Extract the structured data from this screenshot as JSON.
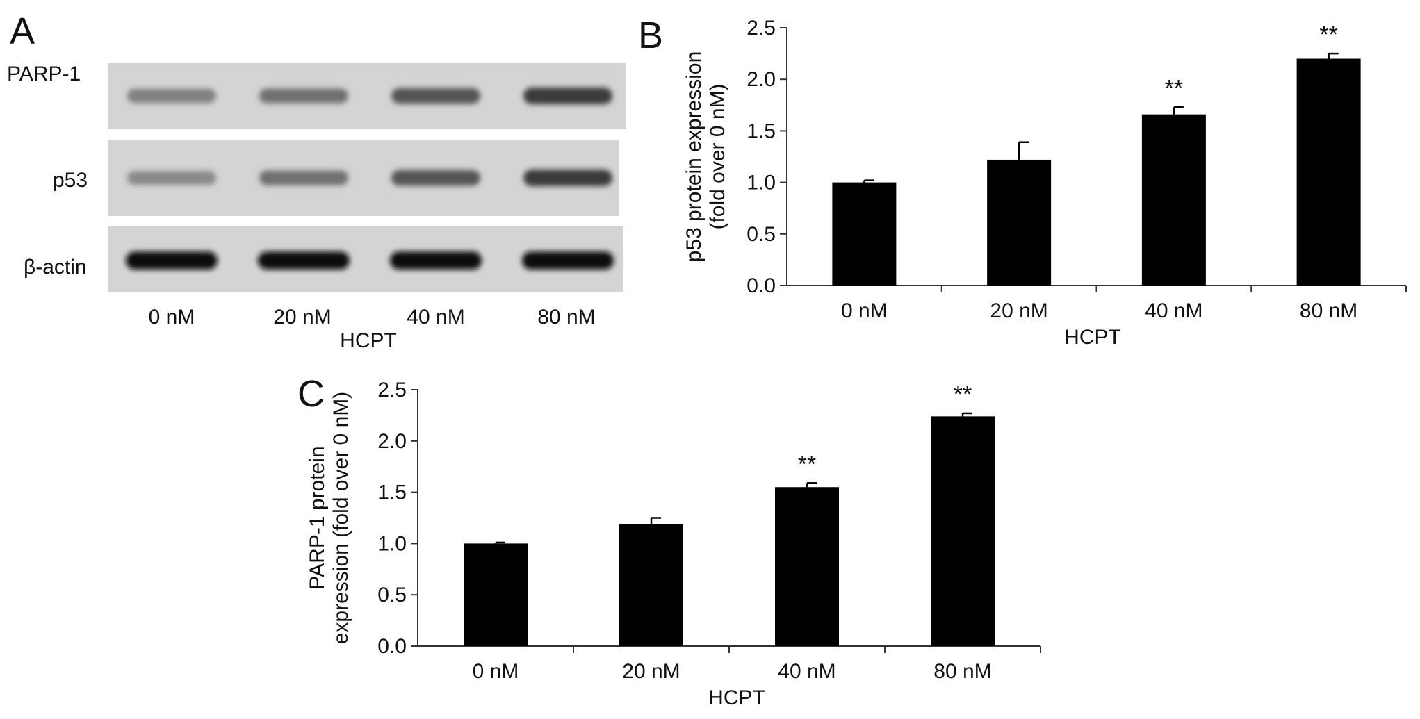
{
  "panels": {
    "a_letter": "A",
    "b_letter": "B",
    "c_letter": "C"
  },
  "blot": {
    "rows": [
      {
        "label": "PARP-1",
        "intensity": [
          0.35,
          0.45,
          0.6,
          0.75
        ]
      },
      {
        "label": "p53",
        "intensity": [
          0.3,
          0.45,
          0.6,
          0.75
        ]
      },
      {
        "label": "β-actin",
        "intensity": [
          1.0,
          1.0,
          1.0,
          1.0
        ]
      }
    ],
    "lanes": [
      "0 nM",
      "20 nM",
      "40 nM",
      "80 nM"
    ],
    "group_label": "HCPT"
  },
  "chart_data": [
    {
      "id": "B",
      "type": "bar",
      "categories": [
        "0 nM",
        "20 nM",
        "40 nM",
        "80 nM"
      ],
      "values": [
        1.0,
        1.22,
        1.66,
        2.2
      ],
      "errors": [
        0.02,
        0.17,
        0.07,
        0.05
      ],
      "annotations": [
        "",
        "",
        "**",
        "**"
      ],
      "ylim": [
        0,
        2.5
      ],
      "yticks": [
        "0.0",
        "0.5",
        "1.0",
        "1.5",
        "2.0",
        "2.5"
      ],
      "ylabel_lines": [
        "p53 protein expression",
        "(fold over 0 nM)"
      ],
      "xlabel": "HCPT",
      "color": "#000000"
    },
    {
      "id": "C",
      "type": "bar",
      "categories": [
        "0 nM",
        "20 nM",
        "40 nM",
        "80 nM"
      ],
      "values": [
        1.0,
        1.19,
        1.55,
        2.24
      ],
      "errors": [
        0.01,
        0.06,
        0.04,
        0.03
      ],
      "annotations": [
        "",
        "",
        "**",
        "**"
      ],
      "ylim": [
        0,
        2.5
      ],
      "yticks": [
        "0.0",
        "0.5",
        "1.0",
        "1.5",
        "2.0",
        "2.5"
      ],
      "ylabel_lines": [
        "PARP-1 protein",
        "expression (fold over 0 nM)"
      ],
      "xlabel": "HCPT",
      "color": "#000000"
    }
  ]
}
